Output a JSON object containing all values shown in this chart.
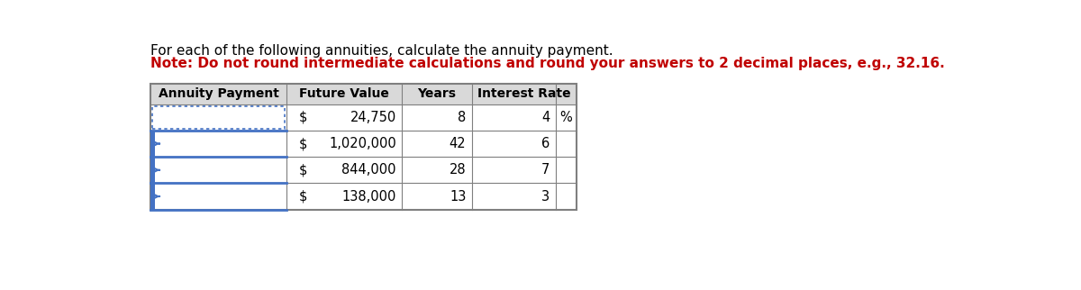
{
  "title_line1": "For each of the following annuities, calculate the annuity payment.",
  "title_line2": "Note: Do not round intermediate calculations and round your answers to 2 decimal places, e.g., 32.16.",
  "title_line1_color": "#000000",
  "title_line2_color": "#c00000",
  "title_fontsize": 11.0,
  "col_headers": [
    "Annuity Payment",
    "Future Value",
    "Years",
    "Interest Rate"
  ],
  "future_values": [
    "24,750",
    "1,020,000",
    "844,000",
    "138,000"
  ],
  "years": [
    "8",
    "42",
    "28",
    "13"
  ],
  "interest_rates": [
    "4",
    "6",
    "7",
    "3"
  ],
  "border_color": "#7f7f7f",
  "header_bg": "#d9d9d9",
  "blue_bar_color": "#4472c4",
  "dotted_border_color": "#4472c4",
  "annuity_dotted_rows": [
    0
  ],
  "annuity_blue_bar_rows": [
    1,
    2,
    3
  ]
}
